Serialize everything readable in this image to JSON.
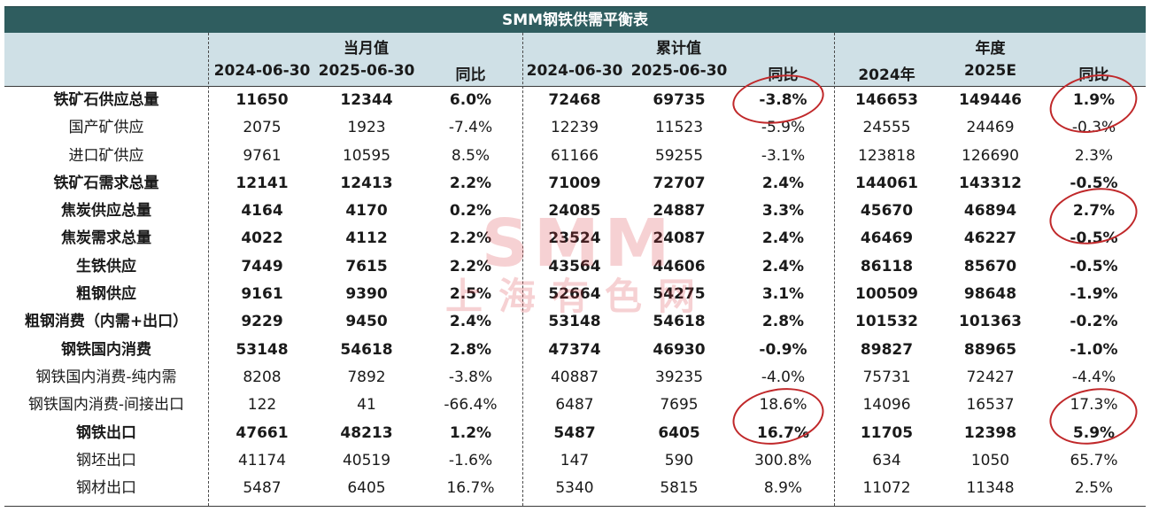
{
  "title": "SMM钢铁供需平衡表",
  "groups": [
    {
      "label": "当月值",
      "cols": [
        "2024-06-30",
        "2025-06-30",
        "同比"
      ]
    },
    {
      "label": "累计值",
      "cols": [
        "2024-06-30",
        "2025-06-30",
        "同比"
      ]
    },
    {
      "label": "年度",
      "cols": [
        "2024年",
        "2025E",
        "同比"
      ]
    }
  ],
  "rows": [
    {
      "label": "铁矿石供应总量",
      "bold": true,
      "values": [
        "11650",
        "12344",
        "6.0%",
        "72468",
        "69735",
        "-3.8%",
        "146653",
        "149446",
        "1.9%"
      ]
    },
    {
      "label": "国产矿供应",
      "bold": false,
      "values": [
        "2075",
        "1923",
        "-7.4%",
        "12239",
        "11523",
        "-5.9%",
        "24555",
        "24469",
        "-0.3%"
      ]
    },
    {
      "label": "进口矿供应",
      "bold": false,
      "values": [
        "9761",
        "10595",
        "8.5%",
        "61166",
        "59255",
        "-3.1%",
        "123818",
        "126690",
        "2.3%"
      ]
    },
    {
      "label": "铁矿石需求总量",
      "bold": true,
      "values": [
        "12141",
        "12413",
        "2.2%",
        "71009",
        "72707",
        "2.4%",
        "144061",
        "143312",
        "-0.5%"
      ]
    },
    {
      "label": "焦炭供应总量",
      "bold": true,
      "values": [
        "4164",
        "4170",
        "0.2%",
        "24085",
        "24887",
        "3.3%",
        "45670",
        "46894",
        "2.7%"
      ]
    },
    {
      "label": "焦炭需求总量",
      "bold": true,
      "values": [
        "4022",
        "4112",
        "2.2%",
        "23524",
        "24087",
        "2.4%",
        "46469",
        "46227",
        "-0.5%"
      ]
    },
    {
      "label": "生铁供应",
      "bold": true,
      "values": [
        "7449",
        "7615",
        "2.2%",
        "43564",
        "44606",
        "2.4%",
        "86118",
        "85670",
        "-0.5%"
      ]
    },
    {
      "label": "粗钢供应",
      "bold": true,
      "values": [
        "9161",
        "9390",
        "2.5%",
        "52664",
        "54275",
        "3.1%",
        "100509",
        "98648",
        "-1.9%"
      ]
    },
    {
      "label": "粗钢消费（内需+出口）",
      "bold": true,
      "values": [
        "9229",
        "9450",
        "2.4%",
        "53148",
        "54618",
        "2.8%",
        "101532",
        "101363",
        "-0.2%"
      ]
    },
    {
      "label": "钢铁国内消费",
      "bold": true,
      "values": [
        "53148",
        "54618",
        "2.8%",
        "47374",
        "46930",
        "-0.9%",
        "89827",
        "88965",
        "-1.0%"
      ]
    },
    {
      "label": "钢铁国内消费-纯内需",
      "bold": false,
      "values": [
        "8208",
        "7892",
        "-3.8%",
        "40887",
        "39235",
        "-4.0%",
        "75731",
        "72427",
        "-4.4%"
      ]
    },
    {
      "label": "钢铁国内消费-间接出口",
      "bold": false,
      "values": [
        "122",
        "41",
        "-66.4%",
        "6487",
        "7695",
        "18.6%",
        "14096",
        "16537",
        "17.3%"
      ]
    },
    {
      "label": "钢铁出口",
      "bold": true,
      "values": [
        "47661",
        "48213",
        "1.2%",
        "5487",
        "6405",
        "16.7%",
        "11705",
        "12398",
        "5.9%"
      ]
    },
    {
      "label": "钢坯出口",
      "bold": false,
      "values": [
        "41174",
        "40519",
        "-1.6%",
        "147",
        "590",
        "300.8%",
        "634",
        "1050",
        "65.7%"
      ]
    },
    {
      "label": "钢材出口",
      "bold": false,
      "values": [
        "5487",
        "6405",
        "16.7%",
        "5340",
        "5815",
        "8.9%",
        "11072",
        "11348",
        "2.5%"
      ]
    }
  ],
  "watermark": {
    "top": "SMM",
    "bottom": "上海有色网"
  },
  "colors": {
    "title_bg": "#2f5d5f",
    "header_bg": "#cfe0e6",
    "annotation": "#c0282a",
    "watermark": "#d9323a"
  }
}
